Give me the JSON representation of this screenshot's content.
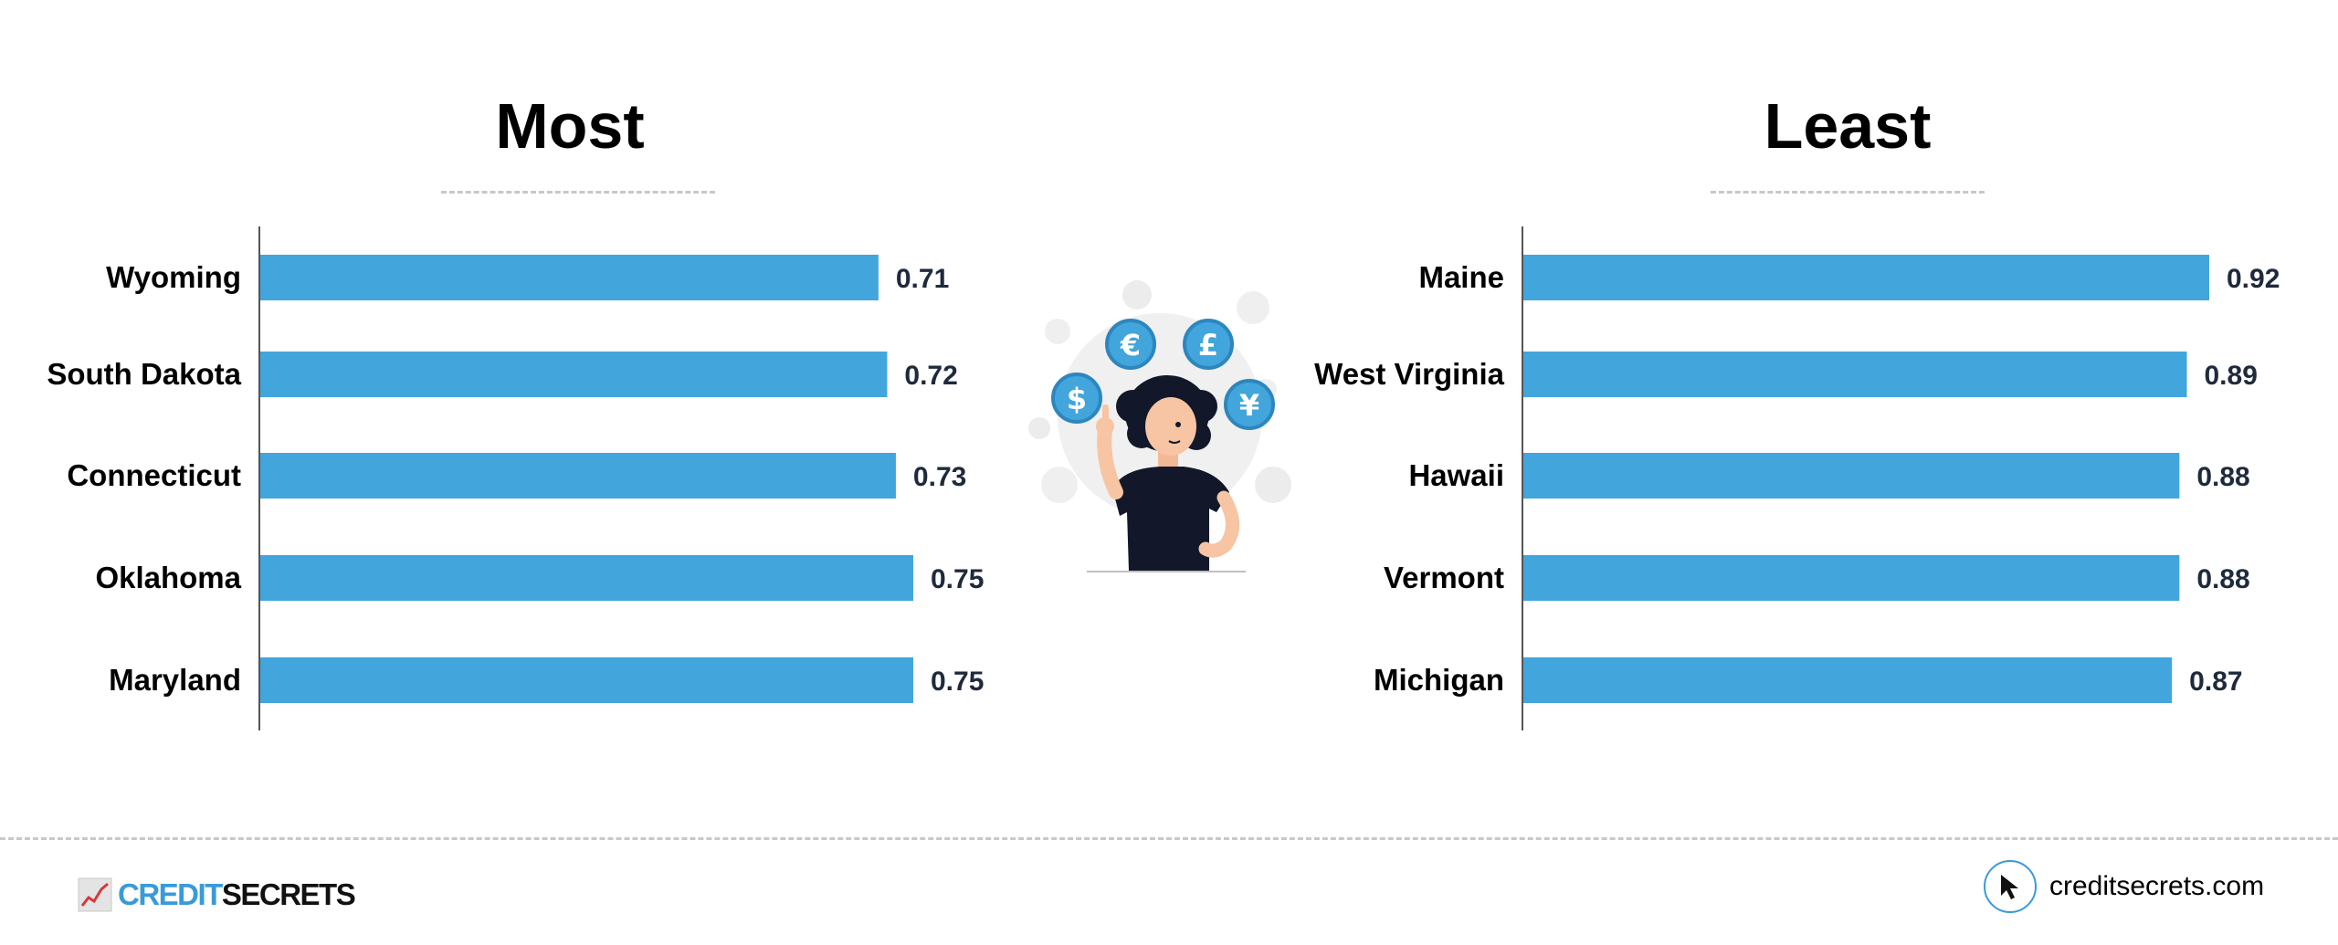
{
  "chart_data": [
    {
      "type": "bar",
      "orientation": "horizontal",
      "title": "Most",
      "categories": [
        "Wyoming",
        "South Dakota",
        "Connecticut",
        "Oklahoma",
        "Maryland"
      ],
      "values": [
        0.71,
        0.72,
        0.73,
        0.75,
        0.75
      ],
      "value_labels": [
        "0.71",
        "0.72",
        "0.73",
        "0.75",
        "0.75"
      ],
      "xlim": [
        0,
        0.75
      ],
      "xlabel": "",
      "ylabel": "",
      "grid": false,
      "bar_color": "#42a5dc"
    },
    {
      "type": "bar",
      "orientation": "horizontal",
      "title": "Least",
      "categories": [
        "Maine",
        "West Virginia",
        "Hawaii",
        "Vermont",
        "Michigan"
      ],
      "values": [
        0.92,
        0.89,
        0.88,
        0.88,
        0.87
      ],
      "value_labels": [
        "0.92",
        "0.89",
        "0.88",
        "0.88",
        "0.87"
      ],
      "xlim": [
        0,
        0.92
      ],
      "xlabel": "",
      "ylabel": "",
      "grid": false,
      "bar_color": "#42a5dc"
    }
  ],
  "illustration": {
    "icon": "person-with-currency-coins-icon",
    "coins": [
      "€",
      "£",
      "$",
      "¥"
    ],
    "coin_color": "#42a5dc"
  },
  "footer": {
    "brand": {
      "icon": "rising-chart-icon",
      "name_part_1": "CREDIT",
      "name_part_2": "SECRETS",
      "color_part_1": "#3a9ad9",
      "color_part_2": "#111111"
    },
    "site": {
      "icon": "cursor-arrow-icon",
      "text": "creditsecrets.com"
    }
  }
}
